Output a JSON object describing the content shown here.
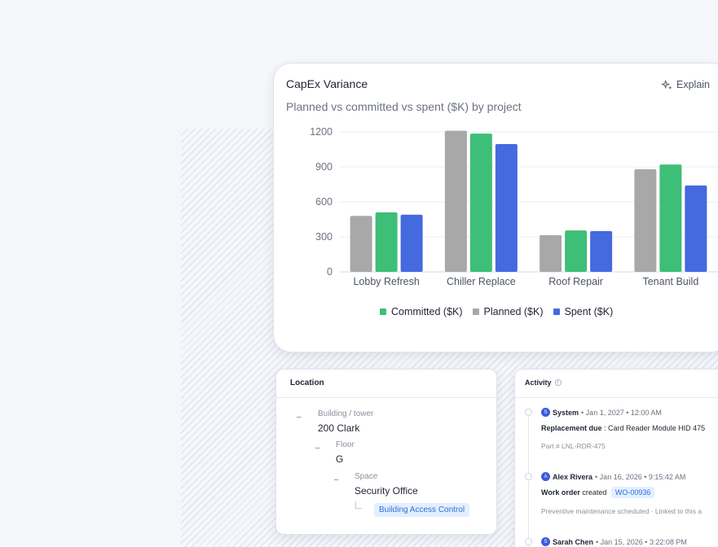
{
  "chart_card": {
    "title": "CapEx Variance",
    "subtitle": "Planned vs committed vs spent ($K) by project",
    "explain_label": "Explain"
  },
  "chart_data": {
    "type": "bar",
    "categories": [
      "Lobby Refresh",
      "Chiller Replace",
      "Roof Repair",
      "Tenant Build"
    ],
    "series": [
      {
        "name": "Planned ($K)",
        "color": "#a8a8a8",
        "values": [
          480,
          1210,
          315,
          880
        ]
      },
      {
        "name": "Committed ($K)",
        "color": "#3dbf77",
        "values": [
          510,
          1185,
          355,
          920
        ]
      },
      {
        "name": "Spent ($K)",
        "color": "#4569de",
        "values": [
          490,
          1095,
          350,
          740
        ]
      }
    ],
    "legend": [
      {
        "name": "Committed ($K)",
        "color": "#3dbf77"
      },
      {
        "name": "Planned ($K)",
        "color": "#a8a8a8"
      },
      {
        "name": "Spent ($K)",
        "color": "#4569de"
      }
    ],
    "yticks": [
      "0",
      "300",
      "600",
      "900",
      "1200"
    ],
    "ylim": [
      0,
      1200
    ],
    "grid": true,
    "legend_position": "bottom"
  },
  "location": {
    "title": "Location",
    "building_label": "Building / tower",
    "building_value": "200 Clark",
    "floor_label": "Floor",
    "floor_value": "G",
    "space_label": "Space",
    "space_value": "Security Office",
    "system_tag": "Building Access Control"
  },
  "activity": {
    "title": "Activity",
    "events": [
      {
        "avatar": "S",
        "user": "System",
        "time": "• Jan 1, 2027 • 12:00 AM",
        "action": "Replacement due",
        "detail": ": Card Reader Module HID 475",
        "sub": "Part # LNL-RDR-475"
      },
      {
        "avatar": "A",
        "user": "Alex Rivera",
        "time": "• Jan 16, 2026 • 9:15:42 AM",
        "action": "Work order",
        "detail": "created",
        "tag": "WO-00936",
        "sub": "Preventive maintenance scheduled · Linked to this a"
      },
      {
        "avatar": "S",
        "user": "Sarah Chen",
        "time": "• Jan 15, 2026 • 3:22:08 PM"
      }
    ]
  }
}
